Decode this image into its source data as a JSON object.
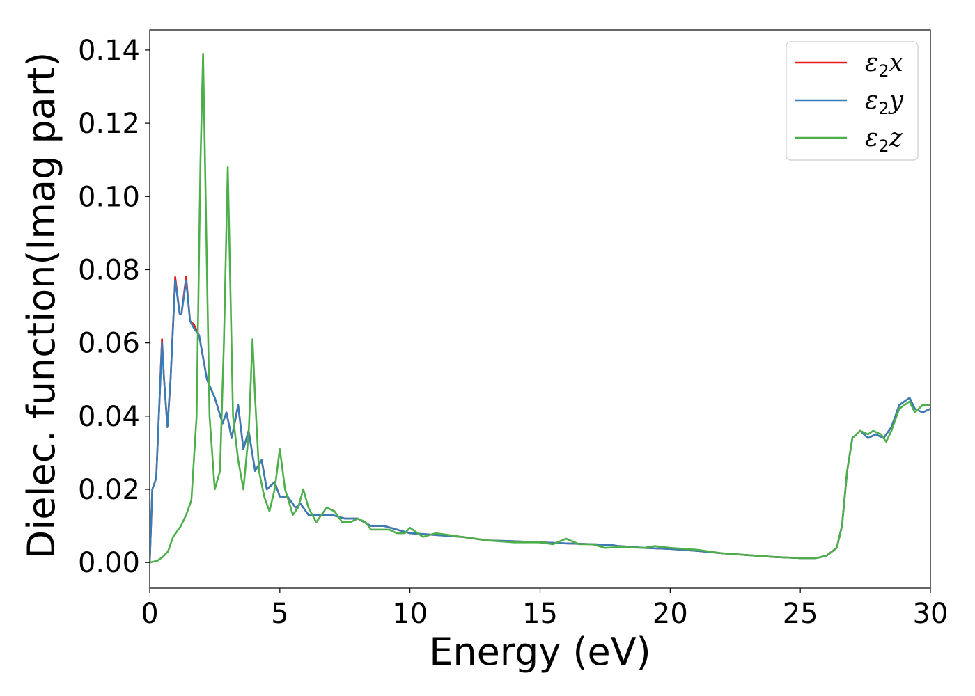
{
  "chart_data": {
    "type": "line",
    "xlabel": "Energy (eV)",
    "ylabel": "Dielec. function(Imag part)",
    "xlim": [
      0,
      30
    ],
    "ylim": [
      -0.007,
      0.1455
    ],
    "x_ticks": [
      0,
      5,
      10,
      15,
      20,
      25,
      30
    ],
    "x_tick_labels": [
      "0",
      "5",
      "10",
      "15",
      "20",
      "25",
      "30"
    ],
    "y_ticks": [
      0.0,
      0.02,
      0.04,
      0.06,
      0.08,
      0.1,
      0.12,
      0.14
    ],
    "y_tick_labels": [
      "0.00",
      "0.02",
      "0.04",
      "0.06",
      "0.08",
      "0.10",
      "0.12",
      "0.14"
    ],
    "grid": false,
    "legend_position": "top-right",
    "series": [
      {
        "name": "ε2x",
        "legend": {
          "base": "ε",
          "sub": "2",
          "axis": "x"
        },
        "color": "#e41a1c",
        "points": [
          [
            0,
            0.0
          ],
          [
            0.1,
            0.02
          ],
          [
            0.25,
            0.023
          ],
          [
            0.35,
            0.04
          ],
          [
            0.47,
            0.061
          ],
          [
            0.55,
            0.05
          ],
          [
            0.68,
            0.037
          ],
          [
            0.8,
            0.05
          ],
          [
            0.98,
            0.078
          ],
          [
            1.15,
            0.068
          ],
          [
            1.22,
            0.068
          ],
          [
            1.4,
            0.078
          ],
          [
            1.55,
            0.066
          ],
          [
            1.7,
            0.065
          ],
          [
            1.9,
            0.062
          ],
          [
            2.2,
            0.05
          ],
          [
            2.5,
            0.045
          ],
          [
            2.8,
            0.038
          ],
          [
            2.95,
            0.041
          ],
          [
            3.15,
            0.034
          ],
          [
            3.4,
            0.043
          ],
          [
            3.6,
            0.031
          ],
          [
            3.8,
            0.036
          ],
          [
            4.05,
            0.025
          ],
          [
            4.3,
            0.028
          ],
          [
            4.5,
            0.02
          ],
          [
            4.8,
            0.022
          ],
          [
            5.0,
            0.018
          ],
          [
            5.3,
            0.018
          ],
          [
            5.6,
            0.015
          ],
          [
            5.8,
            0.016
          ],
          [
            6.1,
            0.013
          ],
          [
            6.5,
            0.013
          ],
          [
            7.0,
            0.013
          ],
          [
            7.5,
            0.012
          ],
          [
            8.0,
            0.012
          ],
          [
            8.5,
            0.01
          ],
          [
            9,
            0.01
          ],
          [
            9.5,
            0.009
          ],
          [
            10,
            0.008
          ],
          [
            11,
            0.0075
          ],
          [
            12,
            0.007
          ],
          [
            13,
            0.006
          ],
          [
            14,
            0.0058
          ],
          [
            15,
            0.0055
          ],
          [
            16,
            0.0052
          ],
          [
            17,
            0.005
          ],
          [
            17.7,
            0.0048
          ],
          [
            18,
            0.0045
          ],
          [
            19,
            0.004
          ],
          [
            20,
            0.0037
          ],
          [
            21,
            0.0032
          ],
          [
            22,
            0.0025
          ],
          [
            23,
            0.002
          ],
          [
            24,
            0.0015
          ],
          [
            25,
            0.0012
          ],
          [
            25.6,
            0.0012
          ],
          [
            26,
            0.0018
          ],
          [
            26.4,
            0.004
          ],
          [
            26.6,
            0.01
          ],
          [
            26.8,
            0.025
          ],
          [
            27.0,
            0.034
          ],
          [
            27.3,
            0.036
          ],
          [
            27.6,
            0.034
          ],
          [
            27.9,
            0.035
          ],
          [
            28.2,
            0.034
          ],
          [
            28.5,
            0.037
          ],
          [
            28.8,
            0.043
          ],
          [
            29.0,
            0.044
          ],
          [
            29.2,
            0.045
          ],
          [
            29.4,
            0.042
          ],
          [
            29.7,
            0.041
          ],
          [
            30,
            0.042
          ]
        ]
      },
      {
        "name": "ε2y",
        "legend": {
          "base": "ε",
          "sub": "2",
          "axis": "y"
        },
        "color": "#377eb8",
        "points": [
          [
            0,
            0.0
          ],
          [
            0.1,
            0.02
          ],
          [
            0.25,
            0.023
          ],
          [
            0.35,
            0.04
          ],
          [
            0.47,
            0.06
          ],
          [
            0.55,
            0.05
          ],
          [
            0.68,
            0.037
          ],
          [
            0.8,
            0.05
          ],
          [
            0.98,
            0.077
          ],
          [
            1.15,
            0.068
          ],
          [
            1.22,
            0.068
          ],
          [
            1.4,
            0.077
          ],
          [
            1.55,
            0.066
          ],
          [
            1.7,
            0.064
          ],
          [
            1.9,
            0.062
          ],
          [
            2.2,
            0.05
          ],
          [
            2.5,
            0.045
          ],
          [
            2.8,
            0.038
          ],
          [
            2.95,
            0.041
          ],
          [
            3.15,
            0.034
          ],
          [
            3.4,
            0.043
          ],
          [
            3.6,
            0.031
          ],
          [
            3.8,
            0.036
          ],
          [
            4.05,
            0.025
          ],
          [
            4.3,
            0.028
          ],
          [
            4.5,
            0.02
          ],
          [
            4.8,
            0.022
          ],
          [
            5.0,
            0.018
          ],
          [
            5.3,
            0.018
          ],
          [
            5.6,
            0.015
          ],
          [
            5.8,
            0.016
          ],
          [
            6.1,
            0.013
          ],
          [
            6.5,
            0.013
          ],
          [
            7.0,
            0.013
          ],
          [
            7.5,
            0.012
          ],
          [
            8.0,
            0.012
          ],
          [
            8.5,
            0.01
          ],
          [
            9,
            0.01
          ],
          [
            9.5,
            0.009
          ],
          [
            10,
            0.008
          ],
          [
            11,
            0.0075
          ],
          [
            12,
            0.007
          ],
          [
            13,
            0.006
          ],
          [
            14,
            0.0058
          ],
          [
            15,
            0.0055
          ],
          [
            16,
            0.0052
          ],
          [
            17,
            0.005
          ],
          [
            17.7,
            0.0048
          ],
          [
            18,
            0.0045
          ],
          [
            19,
            0.004
          ],
          [
            20,
            0.0037
          ],
          [
            21,
            0.0032
          ],
          [
            22,
            0.0025
          ],
          [
            23,
            0.002
          ],
          [
            24,
            0.0015
          ],
          [
            25,
            0.0012
          ],
          [
            25.6,
            0.0012
          ],
          [
            26,
            0.0018
          ],
          [
            26.4,
            0.004
          ],
          [
            26.6,
            0.01
          ],
          [
            26.8,
            0.025
          ],
          [
            27.0,
            0.034
          ],
          [
            27.3,
            0.036
          ],
          [
            27.6,
            0.034
          ],
          [
            27.9,
            0.035
          ],
          [
            28.2,
            0.034
          ],
          [
            28.5,
            0.037
          ],
          [
            28.8,
            0.043
          ],
          [
            29.0,
            0.044
          ],
          [
            29.2,
            0.045
          ],
          [
            29.4,
            0.042
          ],
          [
            29.7,
            0.041
          ],
          [
            30,
            0.042
          ]
        ]
      },
      {
        "name": "ε2z",
        "legend": {
          "base": "ε",
          "sub": "2",
          "axis": "z"
        },
        "color": "#4daf4a",
        "points": [
          [
            0,
            0.0
          ],
          [
            0.3,
            0.0005
          ],
          [
            0.5,
            0.0015
          ],
          [
            0.7,
            0.003
          ],
          [
            0.9,
            0.007
          ],
          [
            1.2,
            0.01
          ],
          [
            1.4,
            0.013
          ],
          [
            1.6,
            0.017
          ],
          [
            1.8,
            0.04
          ],
          [
            1.95,
            0.11
          ],
          [
            2.05,
            0.139
          ],
          [
            2.15,
            0.1
          ],
          [
            2.3,
            0.04
          ],
          [
            2.5,
            0.02
          ],
          [
            2.7,
            0.025
          ],
          [
            2.85,
            0.06
          ],
          [
            3.0,
            0.108
          ],
          [
            3.1,
            0.075
          ],
          [
            3.2,
            0.04
          ],
          [
            3.4,
            0.028
          ],
          [
            3.6,
            0.02
          ],
          [
            3.8,
            0.035
          ],
          [
            3.95,
            0.061
          ],
          [
            4.05,
            0.045
          ],
          [
            4.2,
            0.025
          ],
          [
            4.4,
            0.018
          ],
          [
            4.6,
            0.014
          ],
          [
            4.8,
            0.02
          ],
          [
            5.0,
            0.031
          ],
          [
            5.2,
            0.02
          ],
          [
            5.5,
            0.013
          ],
          [
            5.7,
            0.015
          ],
          [
            5.9,
            0.02
          ],
          [
            6.1,
            0.015
          ],
          [
            6.4,
            0.011
          ],
          [
            6.8,
            0.015
          ],
          [
            7.1,
            0.014
          ],
          [
            7.4,
            0.011
          ],
          [
            7.7,
            0.011
          ],
          [
            8.0,
            0.012
          ],
          [
            8.3,
            0.011
          ],
          [
            8.5,
            0.009
          ],
          [
            8.8,
            0.009
          ],
          [
            9.2,
            0.009
          ],
          [
            9.5,
            0.008
          ],
          [
            9.8,
            0.008
          ],
          [
            10,
            0.0095
          ],
          [
            10.5,
            0.007
          ],
          [
            11,
            0.008
          ],
          [
            12,
            0.007
          ],
          [
            13,
            0.006
          ],
          [
            14,
            0.0055
          ],
          [
            15,
            0.0055
          ],
          [
            15.5,
            0.005
          ],
          [
            16,
            0.0065
          ],
          [
            16.5,
            0.005
          ],
          [
            17,
            0.005
          ],
          [
            17.5,
            0.004
          ],
          [
            18,
            0.0042
          ],
          [
            19,
            0.004
          ],
          [
            19.4,
            0.0045
          ],
          [
            20,
            0.004
          ],
          [
            21,
            0.0035
          ],
          [
            22,
            0.0025
          ],
          [
            23,
            0.002
          ],
          [
            24,
            0.0015
          ],
          [
            25,
            0.0012
          ],
          [
            25.6,
            0.0012
          ],
          [
            26,
            0.0018
          ],
          [
            26.4,
            0.004
          ],
          [
            26.6,
            0.01
          ],
          [
            26.8,
            0.025
          ],
          [
            27.0,
            0.034
          ],
          [
            27.3,
            0.036
          ],
          [
            27.6,
            0.035
          ],
          [
            27.8,
            0.036
          ],
          [
            28.1,
            0.035
          ],
          [
            28.3,
            0.033
          ],
          [
            28.5,
            0.036
          ],
          [
            28.8,
            0.042
          ],
          [
            29.0,
            0.043
          ],
          [
            29.2,
            0.044
          ],
          [
            29.4,
            0.041
          ],
          [
            29.7,
            0.043
          ],
          [
            30,
            0.043
          ]
        ]
      }
    ]
  }
}
